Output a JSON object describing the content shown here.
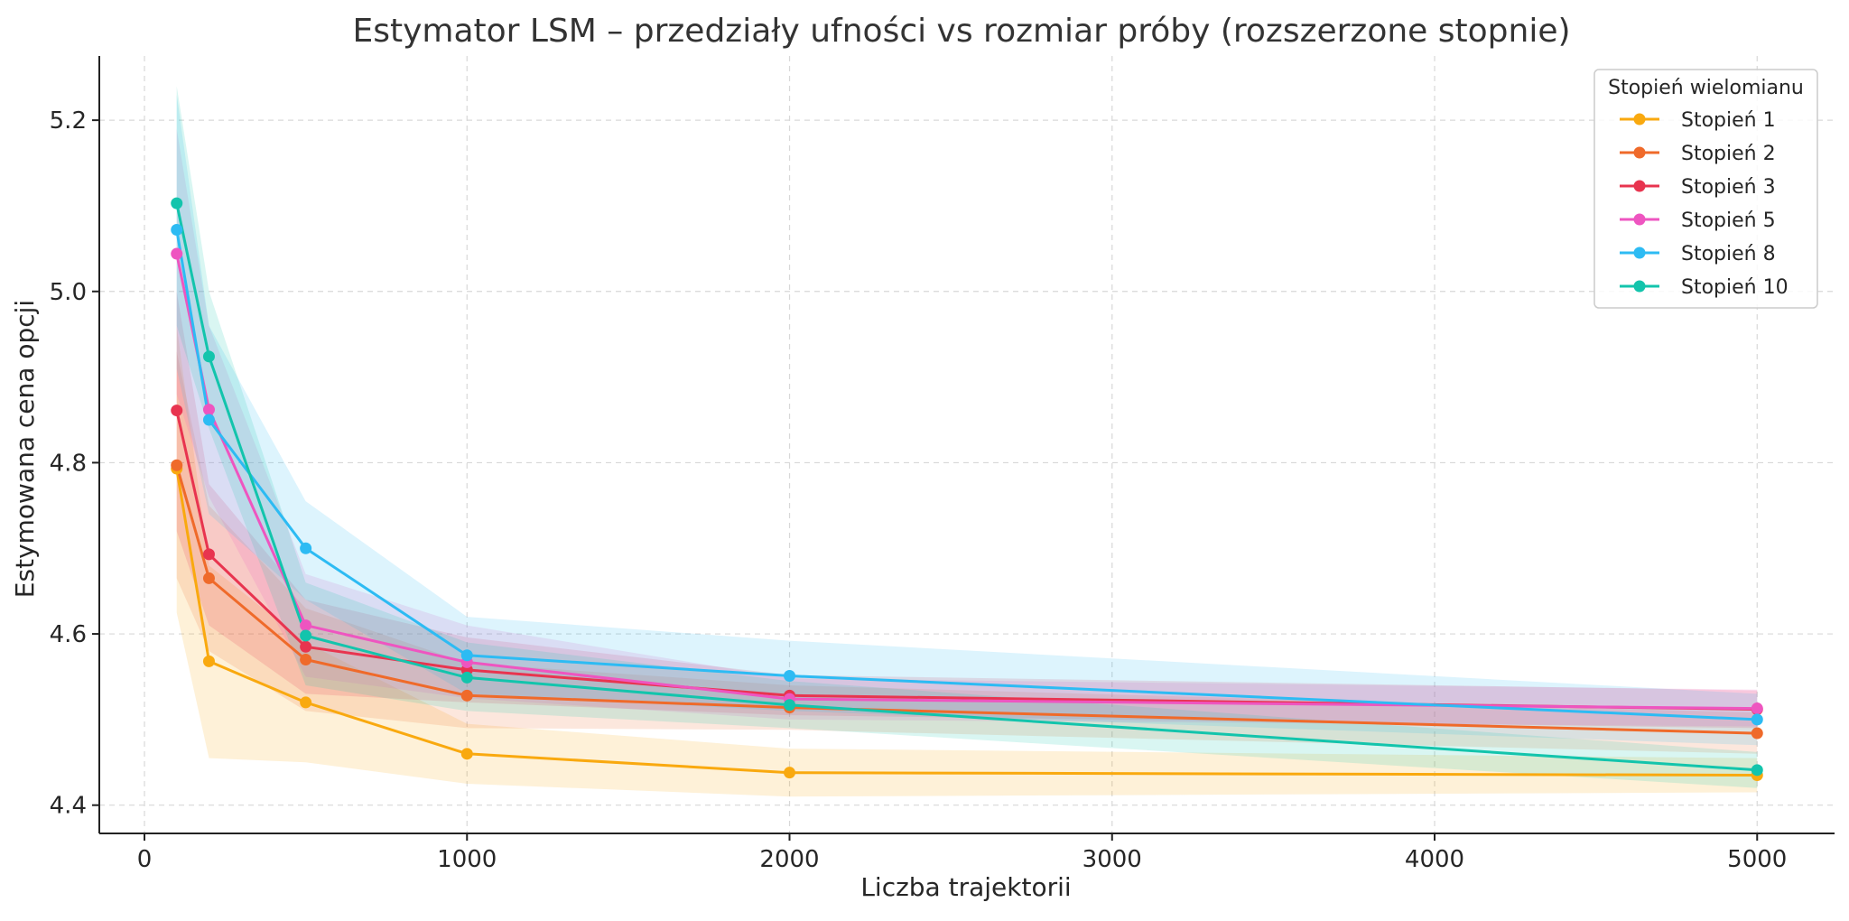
{
  "chart_data": {
    "type": "line",
    "title": "Estymator LSM – przedziały ufności vs rozmiar próby (rozszerzone stopnie)",
    "xlabel": "Liczba trajektorii",
    "ylabel": "Estymowana cena opcji",
    "xlim": [
      -140,
      5240
    ],
    "ylim": [
      4.367,
      5.275
    ],
    "x_ticks": [
      0,
      1000,
      2000,
      3000,
      4000,
      5000
    ],
    "y_ticks": [
      4.4,
      4.6,
      4.8,
      5.0,
      5.2
    ],
    "x_tick_labels": [
      "0",
      "1000",
      "2000",
      "3000",
      "4000",
      "5000"
    ],
    "y_tick_labels": [
      "4.4",
      "4.6",
      "4.8",
      "5.0",
      "5.2"
    ],
    "grid": true,
    "legend": {
      "title": "Stopień wielomianu",
      "placement": "top-right"
    },
    "x": [
      100,
      200,
      500,
      1000,
      2000,
      5000
    ],
    "series": [
      {
        "name": "Stopień 1",
        "color": "#f9a90f",
        "values": [
          4.793,
          4.568,
          4.52,
          4.46,
          4.438,
          4.435
        ],
        "lower": [
          4.625,
          4.455,
          4.45,
          4.425,
          4.41,
          4.415
        ],
        "upper": [
          4.96,
          4.68,
          4.59,
          4.495,
          4.466,
          4.455
        ]
      },
      {
        "name": "Stopień 2",
        "color": "#ef6a2a",
        "values": [
          4.797,
          4.665,
          4.57,
          4.528,
          4.514,
          4.484
        ],
        "lower": [
          4.665,
          4.58,
          4.51,
          4.49,
          4.488,
          4.46
        ],
        "upper": [
          4.93,
          4.75,
          4.63,
          4.566,
          4.54,
          4.508
        ]
      },
      {
        "name": "Stopień 3",
        "color": "#e8344f",
        "values": [
          4.861,
          4.693,
          4.585,
          4.558,
          4.528,
          4.512
        ],
        "lower": [
          4.72,
          4.61,
          4.53,
          4.52,
          4.505,
          4.49
        ],
        "upper": [
          5.0,
          4.775,
          4.64,
          4.596,
          4.552,
          4.534
        ]
      },
      {
        "name": "Stopień 5",
        "color": "#ee55c0",
        "values": [
          5.044,
          4.862,
          4.61,
          4.567,
          4.524,
          4.513
        ],
        "lower": [
          4.88,
          4.76,
          4.55,
          4.525,
          4.5,
          4.492
        ],
        "upper": [
          5.19,
          4.96,
          4.67,
          4.61,
          4.548,
          4.535
        ]
      },
      {
        "name": "Stopień 8",
        "color": "#2dbbf3",
        "values": [
          5.072,
          4.85,
          4.7,
          4.575,
          4.551,
          4.5
        ],
        "lower": [
          4.91,
          4.74,
          4.64,
          4.53,
          4.51,
          4.47
        ],
        "upper": [
          5.23,
          4.96,
          4.755,
          4.62,
          4.592,
          4.53
        ]
      },
      {
        "name": "Stopień 10",
        "color": "#13c4ac",
        "values": [
          5.103,
          4.924,
          4.598,
          4.549,
          4.517,
          4.441
        ],
        "lower": [
          4.96,
          4.84,
          4.54,
          4.51,
          4.49,
          4.42
        ],
        "upper": [
          5.24,
          5.0,
          4.66,
          4.59,
          4.545,
          4.462
        ]
      }
    ]
  }
}
